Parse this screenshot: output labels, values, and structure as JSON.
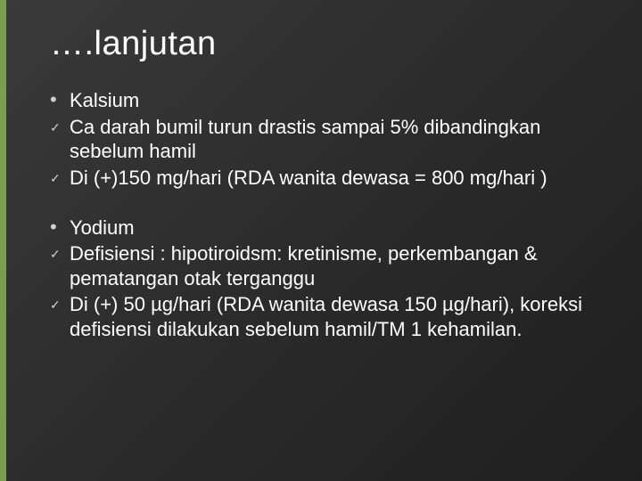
{
  "slide": {
    "title": "….lanjutan",
    "background_gradient": [
      "#3a3a3a",
      "#2b2b2b",
      "#1f1f1f"
    ],
    "accent_color": "#7a9e4a",
    "text_color": "#ffffff",
    "title_fontsize": 38,
    "body_fontsize": 22,
    "groups": [
      {
        "items": [
          {
            "marker": "dot",
            "text": "Kalsium"
          },
          {
            "marker": "check",
            "text": "Ca darah bumil turun drastis sampai 5% dibandingkan sebelum hamil"
          },
          {
            "marker": "check",
            "text": "Di (+)150 mg/hari (RDA wanita dewasa = 800 mg/hari )"
          }
        ]
      },
      {
        "items": [
          {
            "marker": "dot",
            "text": "Yodium"
          },
          {
            "marker": "check",
            "text": "Defisiensi : hipotiroidsm: kretinisme, perkembangan & pematangan otak terganggu"
          },
          {
            "marker": "check",
            "text": "Di (+) 50 µg/hari (RDA wanita dewasa 150 µg/hari), koreksi defisiensi dilakukan sebelum hamil/TM 1 kehamilan."
          }
        ]
      }
    ],
    "markers": {
      "dot": "•",
      "check": "✓"
    }
  }
}
